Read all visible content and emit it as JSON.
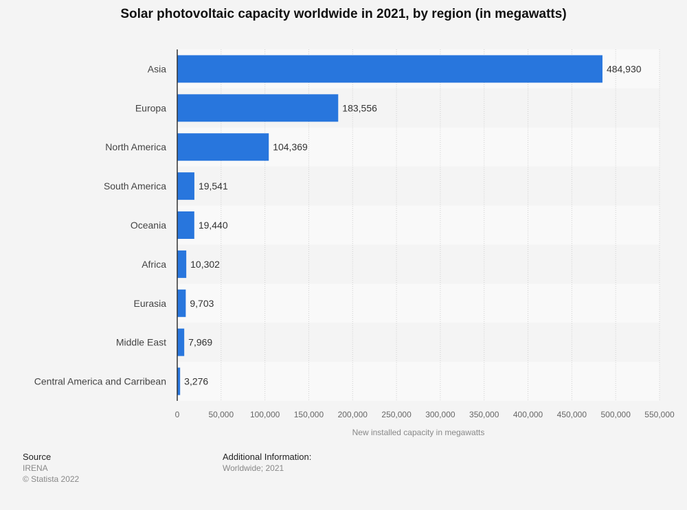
{
  "chart_data": {
    "type": "bar",
    "orientation": "horizontal",
    "title": "Solar photovoltaic capacity worldwide in 2021, by region (in megawatts)",
    "categories": [
      "Asia",
      "Europa",
      "North America",
      "South America",
      "Oceania",
      "Africa",
      "Eurasia",
      "Middle East",
      "Central America and Carribean"
    ],
    "values": [
      484930,
      183556,
      104369,
      19541,
      19440,
      10302,
      9703,
      7969,
      3276
    ],
    "value_labels": [
      "484,930",
      "183,556",
      "104,369",
      "19,541",
      "19,440",
      "10,302",
      "9,703",
      "7,969",
      "3,276"
    ],
    "xlabel": "New installed capacity in megawatts",
    "ylabel": "",
    "xlim": [
      0,
      550000
    ],
    "xticks": [
      0,
      50000,
      100000,
      150000,
      200000,
      250000,
      300000,
      350000,
      400000,
      450000,
      500000,
      550000
    ],
    "xtick_labels": [
      "0",
      "50,000",
      "100,000",
      "150,000",
      "200,000",
      "250,000",
      "300,000",
      "350,000",
      "400,000",
      "450,000",
      "500,000",
      "550,000"
    ],
    "bar_color": "#2876dd",
    "grid": true,
    "legend": "none"
  },
  "footer": {
    "source_heading": "Source",
    "source_name": "IRENA",
    "copyright": "© Statista 2022",
    "info_heading": "Additional Information:",
    "info_text": "Worldwide; 2021"
  }
}
